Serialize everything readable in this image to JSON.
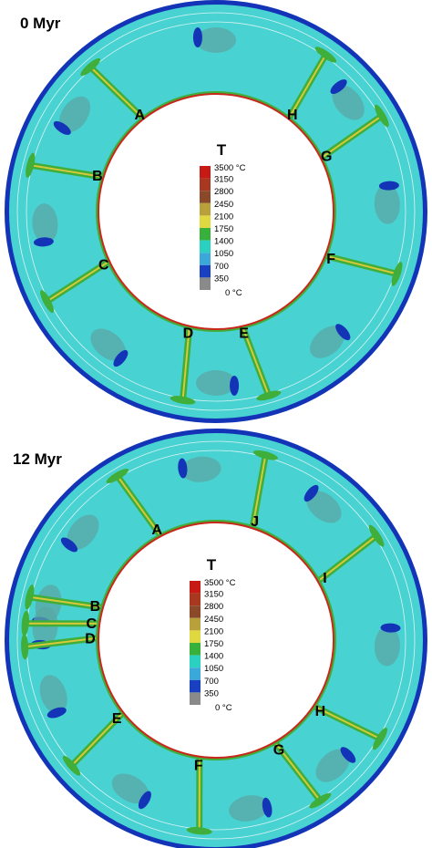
{
  "colors": {
    "mantle": "#49d2d2",
    "mantle_dark": "#3cbcc4",
    "cold_blob": "#5aa7a4",
    "cold_edge": "#1434b8",
    "plume_green": "#3fae3a",
    "plume_yellow": "#d8c83a",
    "hot_rim": "#c8281c",
    "core": "#ffffff"
  },
  "colorbar": {
    "title": "T",
    "top_label": "3500 °C",
    "bottom_label": "0 °C",
    "levels": [
      "3150",
      "2800",
      "2450",
      "2100",
      "1750",
      "1400",
      "1050",
      "700",
      "350"
    ],
    "swatches": [
      "#c81a14",
      "#a83820",
      "#8a4a2a",
      "#b8a03a",
      "#e0d840",
      "#38b03c",
      "#2ad0c0",
      "#3aa8d8",
      "#1840c0",
      "#8a8a8a"
    ]
  },
  "panels": [
    {
      "id": "0myr",
      "label": "0 Myr",
      "plumes": [
        {
          "name": "A",
          "angle": 128
        },
        {
          "name": "H",
          "angle": 52
        },
        {
          "name": "G",
          "angle": 27
        },
        {
          "name": "B",
          "angle": 163
        },
        {
          "name": "C",
          "angle": 205
        },
        {
          "name": "F",
          "angle": -22
        },
        {
          "name": "D",
          "angle": 257
        },
        {
          "name": "E",
          "angle": 283
        }
      ]
    },
    {
      "id": "12myr",
      "label": "12 Myr",
      "plumes": [
        {
          "name": "A",
          "angle": 118
        },
        {
          "name": "J",
          "angle": 72
        },
        {
          "name": "I",
          "angle": 30
        },
        {
          "name": "B",
          "angle": 164
        },
        {
          "name": "C",
          "angle": 172
        },
        {
          "name": "D",
          "angle": 179
        },
        {
          "name": "E",
          "angle": 218
        },
        {
          "name": "H",
          "angle": -34
        },
        {
          "name": "G",
          "angle": 300
        },
        {
          "name": "F",
          "angle": 262
        }
      ]
    }
  ]
}
